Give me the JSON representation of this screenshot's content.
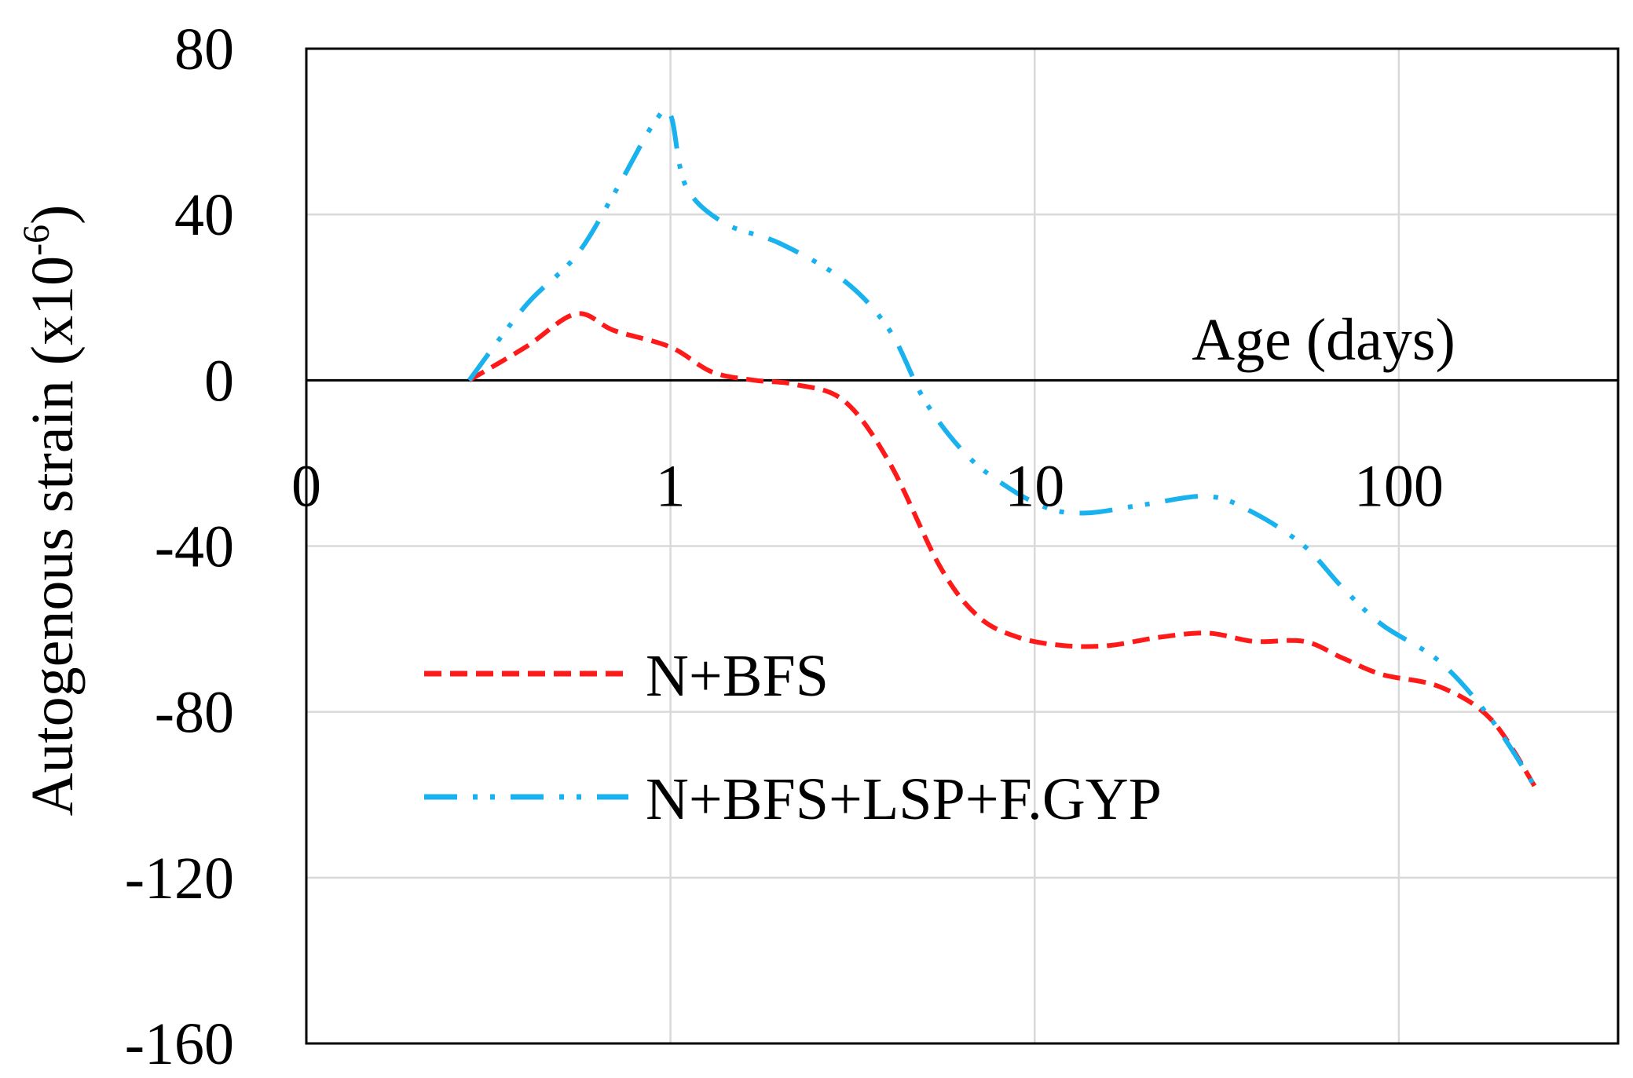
{
  "chart_data": {
    "type": "line",
    "xlabel": "Age (days)",
    "ylabel": "Autogenous strain (x10",
    "ylabel_superscript": "-6",
    "ylabel_close": ")",
    "x_scale": "log",
    "xlim": [
      0.1,
      400
    ],
    "ylim": [
      -160,
      80
    ],
    "x_ticks": [
      {
        "value": 0.1,
        "label": "0"
      },
      {
        "value": 1,
        "label": "1"
      },
      {
        "value": 10,
        "label": "10"
      },
      {
        "value": 100,
        "label": "100"
      }
    ],
    "y_ticks": [
      {
        "value": 80,
        "label": "80"
      },
      {
        "value": 40,
        "label": "40"
      },
      {
        "value": 0,
        "label": "0"
      },
      {
        "value": -40,
        "label": "-40"
      },
      {
        "value": -80,
        "label": "-80"
      },
      {
        "value": -120,
        "label": "-120"
      },
      {
        "value": -160,
        "label": "-160"
      }
    ],
    "grid": true,
    "legend_position": "lower-left",
    "series": [
      {
        "name": "N+BFS",
        "color": "#FF1A1A",
        "style": "dashed",
        "x": [
          0.28,
          0.4,
          0.55,
          0.7,
          1.0,
          1.3,
          1.7,
          2.2,
          3.0,
          4.0,
          5.5,
          7.0,
          9.0,
          12,
          16,
          22,
          30,
          40,
          55,
          70,
          90,
          130,
          180,
          240
        ],
        "y": [
          0,
          8,
          16,
          12,
          8,
          2,
          0,
          -1,
          -5,
          -20,
          -45,
          -57,
          -62,
          -64,
          -64,
          -62,
          -61,
          -63,
          -63,
          -67,
          -71,
          -74,
          -82,
          -99
        ]
      },
      {
        "name": "N+BFS+LSP+F.GYP",
        "color": "#1AB2EE",
        "style": "dash-dot-dot",
        "x": [
          0.28,
          0.4,
          0.55,
          0.7,
          0.9,
          1.0,
          1.1,
          1.4,
          2.0,
          3.0,
          4.0,
          5.0,
          6.5,
          8.5,
          11,
          14,
          20,
          30,
          40,
          55,
          70,
          90,
          130,
          180,
          240
        ],
        "y": [
          0,
          18,
          30,
          45,
          62,
          64,
          47,
          38,
          33,
          24,
          12,
          -5,
          -18,
          -26,
          -31,
          -32,
          -30,
          -28,
          -32,
          -40,
          -50,
          -59,
          -68,
          -82,
          -99
        ]
      }
    ]
  }
}
